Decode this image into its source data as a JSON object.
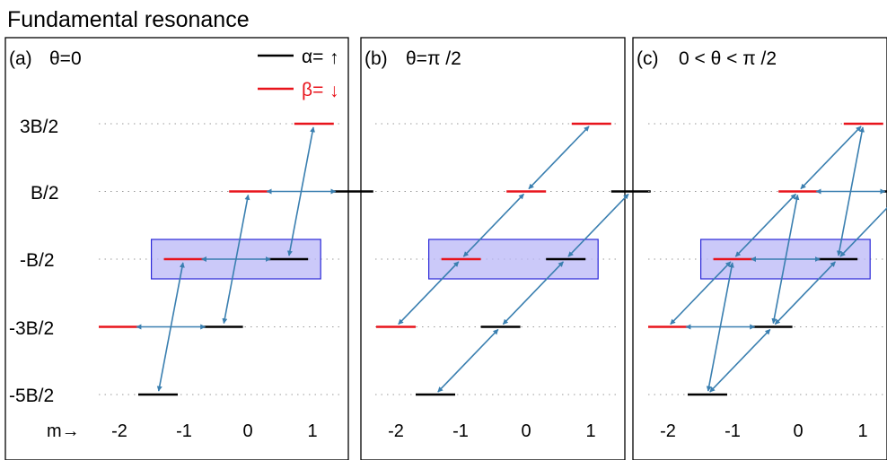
{
  "title": "Fundamental resonance",
  "y_levels": [
    {
      "label": "3B/2",
      "value": 1.5
    },
    {
      "label": "B/2",
      "value": 0.5
    },
    {
      "label": "-B/2",
      "value": -0.5
    },
    {
      "label": "-3B/2",
      "value": -1.5
    },
    {
      "label": "-5B/2",
      "value": -2.5
    }
  ],
  "x_axis_prefix": "m→",
  "m_values": [
    -2,
    -1,
    0,
    1
  ],
  "m_tick_labels": [
    "-2",
    "-1",
    "0",
    "1"
  ],
  "legend": {
    "alpha": {
      "label": "α=",
      "symbol": "↑",
      "color": "#000000"
    },
    "beta": {
      "label": "β=",
      "symbol": "↓",
      "color": "#e8141c"
    }
  },
  "colors": {
    "alpha": "#000000",
    "beta": "#e8141c",
    "arrow": "#3a7fb0",
    "highlight_fill": "#b9b7f7",
    "highlight_stroke": "#2b28d8"
  },
  "levels": [
    {
      "m": -2,
      "spin": "beta",
      "value": -1.5
    },
    {
      "m": -2,
      "spin": "alpha",
      "value": -2.5
    },
    {
      "m": -1,
      "spin": "beta",
      "value": -0.5
    },
    {
      "m": -1,
      "spin": "alpha",
      "value": -1.5
    },
    {
      "m": 0,
      "spin": "beta",
      "value": 0.5
    },
    {
      "m": 0,
      "spin": "alpha",
      "value": -0.5
    },
    {
      "m": 1,
      "spin": "beta",
      "value": 1.5
    },
    {
      "m": 1,
      "spin": "alpha",
      "value": 0.5
    }
  ],
  "highlight": {
    "level": -0.5,
    "m_from": -1,
    "m_to": 0
  },
  "panels": [
    {
      "id": "a",
      "label": "(a)",
      "condition": "θ=0",
      "show_legend": true,
      "transitions": [
        {
          "from": {
            "m": -2,
            "spin": "alpha"
          },
          "to": {
            "m": -1,
            "spin": "beta"
          }
        },
        {
          "from": {
            "m": -1,
            "spin": "alpha"
          },
          "to": {
            "m": 0,
            "spin": "beta"
          }
        },
        {
          "from": {
            "m": 0,
            "spin": "alpha"
          },
          "to": {
            "m": 1,
            "spin": "beta"
          }
        },
        {
          "from": {
            "m": -2,
            "spin": "beta"
          },
          "to": {
            "m": -1,
            "spin": "alpha"
          }
        },
        {
          "from": {
            "m": -1,
            "spin": "beta"
          },
          "to": {
            "m": 0,
            "spin": "alpha"
          }
        },
        {
          "from": {
            "m": 0,
            "spin": "beta"
          },
          "to": {
            "m": 1,
            "spin": "alpha"
          }
        }
      ]
    },
    {
      "id": "b",
      "label": "(b)",
      "condition": "θ=π /2",
      "show_legend": false,
      "transitions": [
        {
          "from": {
            "m": -2,
            "spin": "alpha"
          },
          "to": {
            "m": -1,
            "spin": "alpha"
          }
        },
        {
          "from": {
            "m": -1,
            "spin": "alpha"
          },
          "to": {
            "m": 0,
            "spin": "alpha"
          }
        },
        {
          "from": {
            "m": 0,
            "spin": "alpha"
          },
          "to": {
            "m": 1,
            "spin": "alpha"
          }
        },
        {
          "from": {
            "m": -2,
            "spin": "beta"
          },
          "to": {
            "m": -1,
            "spin": "beta"
          }
        },
        {
          "from": {
            "m": -1,
            "spin": "beta"
          },
          "to": {
            "m": 0,
            "spin": "beta"
          }
        },
        {
          "from": {
            "m": 0,
            "spin": "beta"
          },
          "to": {
            "m": 1,
            "spin": "beta"
          }
        }
      ]
    },
    {
      "id": "c",
      "label": "(c)",
      "condition": "0 < θ < π /2",
      "show_legend": false,
      "transitions": [
        {
          "from": {
            "m": -2,
            "spin": "alpha"
          },
          "to": {
            "m": -1,
            "spin": "beta"
          }
        },
        {
          "from": {
            "m": -1,
            "spin": "alpha"
          },
          "to": {
            "m": 0,
            "spin": "beta"
          }
        },
        {
          "from": {
            "m": 0,
            "spin": "alpha"
          },
          "to": {
            "m": 1,
            "spin": "beta"
          }
        },
        {
          "from": {
            "m": -2,
            "spin": "beta"
          },
          "to": {
            "m": -1,
            "spin": "alpha"
          }
        },
        {
          "from": {
            "m": -1,
            "spin": "beta"
          },
          "to": {
            "m": 0,
            "spin": "alpha"
          }
        },
        {
          "from": {
            "m": 0,
            "spin": "beta"
          },
          "to": {
            "m": 1,
            "spin": "alpha"
          }
        },
        {
          "from": {
            "m": -2,
            "spin": "alpha"
          },
          "to": {
            "m": -1,
            "spin": "alpha"
          }
        },
        {
          "from": {
            "m": -1,
            "spin": "alpha"
          },
          "to": {
            "m": 0,
            "spin": "alpha"
          }
        },
        {
          "from": {
            "m": 0,
            "spin": "alpha"
          },
          "to": {
            "m": 1,
            "spin": "alpha"
          }
        },
        {
          "from": {
            "m": -2,
            "spin": "beta"
          },
          "to": {
            "m": -1,
            "spin": "beta"
          }
        },
        {
          "from": {
            "m": -1,
            "spin": "beta"
          },
          "to": {
            "m": 0,
            "spin": "beta"
          }
        },
        {
          "from": {
            "m": 0,
            "spin": "beta"
          },
          "to": {
            "m": 1,
            "spin": "beta"
          }
        }
      ]
    }
  ]
}
